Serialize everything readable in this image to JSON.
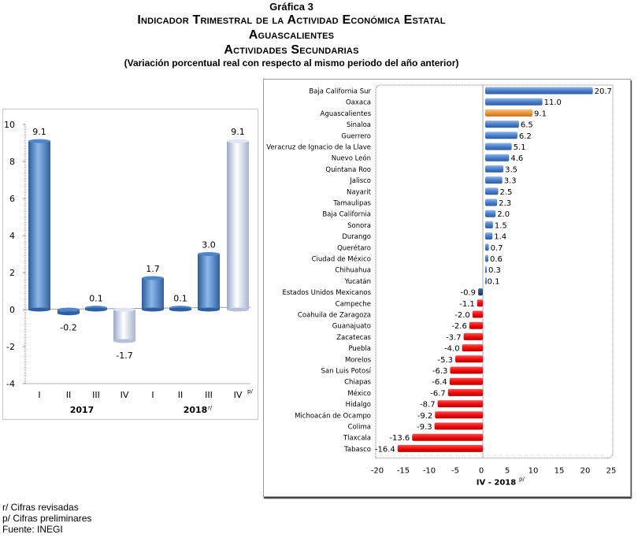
{
  "header": {
    "grafica": "Gráfica 3",
    "title_line1": "Indicador Trimestral de la Actividad Económica Estatal",
    "title_line2": "Aguascalientes",
    "title_line3": "Actividades Secundarias",
    "subtitle": "(Variación porcentual real con respecto al mismo periodo del año anterior)"
  },
  "footnotes": {
    "revised": "r/ Cifras revisadas",
    "preliminary": "p/ Cifras preliminares",
    "source": "Fuente: INEGI"
  },
  "colors": {
    "dark_blue_bar": "#3f74b8",
    "light_bar": "#c9d4e8",
    "positive_bar": "#4a7fcb",
    "highlight_bar": "#f0963a",
    "national_bar": "#1f4a7c",
    "negative_bar": "#e60e0e"
  },
  "chart_data": [
    {
      "type": "bar",
      "orientation": "vertical",
      "title": "",
      "xlabel": "",
      "ylabel": "",
      "ylim": [
        -4,
        10
      ],
      "yticks": [
        -4,
        -2,
        0,
        2,
        4,
        6,
        8,
        10
      ],
      "grid": false,
      "categories": [
        "I",
        "II",
        "III",
        "IV",
        "I",
        "II",
        "III",
        "IV"
      ],
      "category_suffix": [
        "",
        "",
        "",
        "",
        "",
        "",
        "",
        "p/"
      ],
      "groups": [
        {
          "label": "2017",
          "suffix": "",
          "span": [
            0,
            3
          ]
        },
        {
          "label": "2018",
          "suffix": "r/",
          "span": [
            4,
            7
          ]
        }
      ],
      "values": [
        9.1,
        -0.2,
        0.1,
        -1.7,
        1.7,
        0.1,
        3.0,
        9.1
      ],
      "data_labels": [
        "9.1",
        "-0.2",
        "0.1",
        "-1.7",
        "1.7",
        "0.1",
        "3.0",
        "9.1"
      ],
      "bar_style": [
        "dark",
        "dark",
        "dark",
        "light",
        "dark",
        "dark",
        "dark",
        "light"
      ]
    },
    {
      "type": "bar",
      "orientation": "horizontal",
      "title": "",
      "xlabel": "IV - 2018",
      "xlabel_suffix": "p/",
      "ylabel": "",
      "xlim": [
        -20,
        25
      ],
      "xticks": [
        -20,
        -15,
        -10,
        -5,
        0,
        5,
        10,
        15,
        20,
        25
      ],
      "grid": false,
      "categories": [
        "Baja California Sur",
        "Oaxaca",
        "Aguascalientes",
        "Sinaloa",
        "Guerrero",
        "Veracruz de Ignacio de la Llave",
        "Nuevo León",
        "Quintana Roo",
        "Jalisco",
        "Nayarit",
        "Tamaulipas",
        "Baja California",
        "Sonora",
        "Durango",
        "Querétaro",
        "Ciudad de México",
        "Chihuahua",
        "Yucatán",
        "Estados Unidos Mexicanos",
        "Campeche",
        "Coahuila de Zaragoza",
        "Guanajuato",
        "Zacatecas",
        "Puebla",
        "Morelos",
        "San Luis Potosí",
        "Chiapas",
        "México",
        "Hidalgo",
        "Michoacán de Ocampo",
        "Colima",
        "Tlaxcala",
        "Tabasco"
      ],
      "values": [
        20.7,
        11.0,
        9.1,
        6.5,
        6.2,
        5.1,
        4.6,
        3.5,
        3.3,
        2.5,
        2.3,
        2.0,
        1.5,
        1.4,
        0.7,
        0.6,
        0.3,
        0.1,
        -0.9,
        -1.1,
        -2.0,
        -2.6,
        -3.7,
        -4.0,
        -5.3,
        -6.3,
        -6.4,
        -6.7,
        -8.7,
        -9.2,
        -9.3,
        -13.6,
        -16.4
      ],
      "data_labels": [
        "20.7",
        "11.0",
        "9.1",
        "6.5",
        "6.2",
        "5.1",
        "4.6",
        "3.5",
        "3.3",
        "2.5",
        "2.3",
        "2.0",
        "1.5",
        "1.4",
        "0.7",
        "0.6",
        "0.3",
        "0.1",
        "-0.9",
        "-1.1",
        "-2.0",
        "-2.6",
        "-3.7",
        "-4.0",
        "-5.3",
        "-6.3",
        "-6.4",
        "-6.7",
        "-8.7",
        "-9.2",
        "-9.3",
        "-13.6",
        "-16.4"
      ],
      "highlight": "Aguascalientes",
      "national": "Estados Unidos Mexicanos"
    }
  ]
}
